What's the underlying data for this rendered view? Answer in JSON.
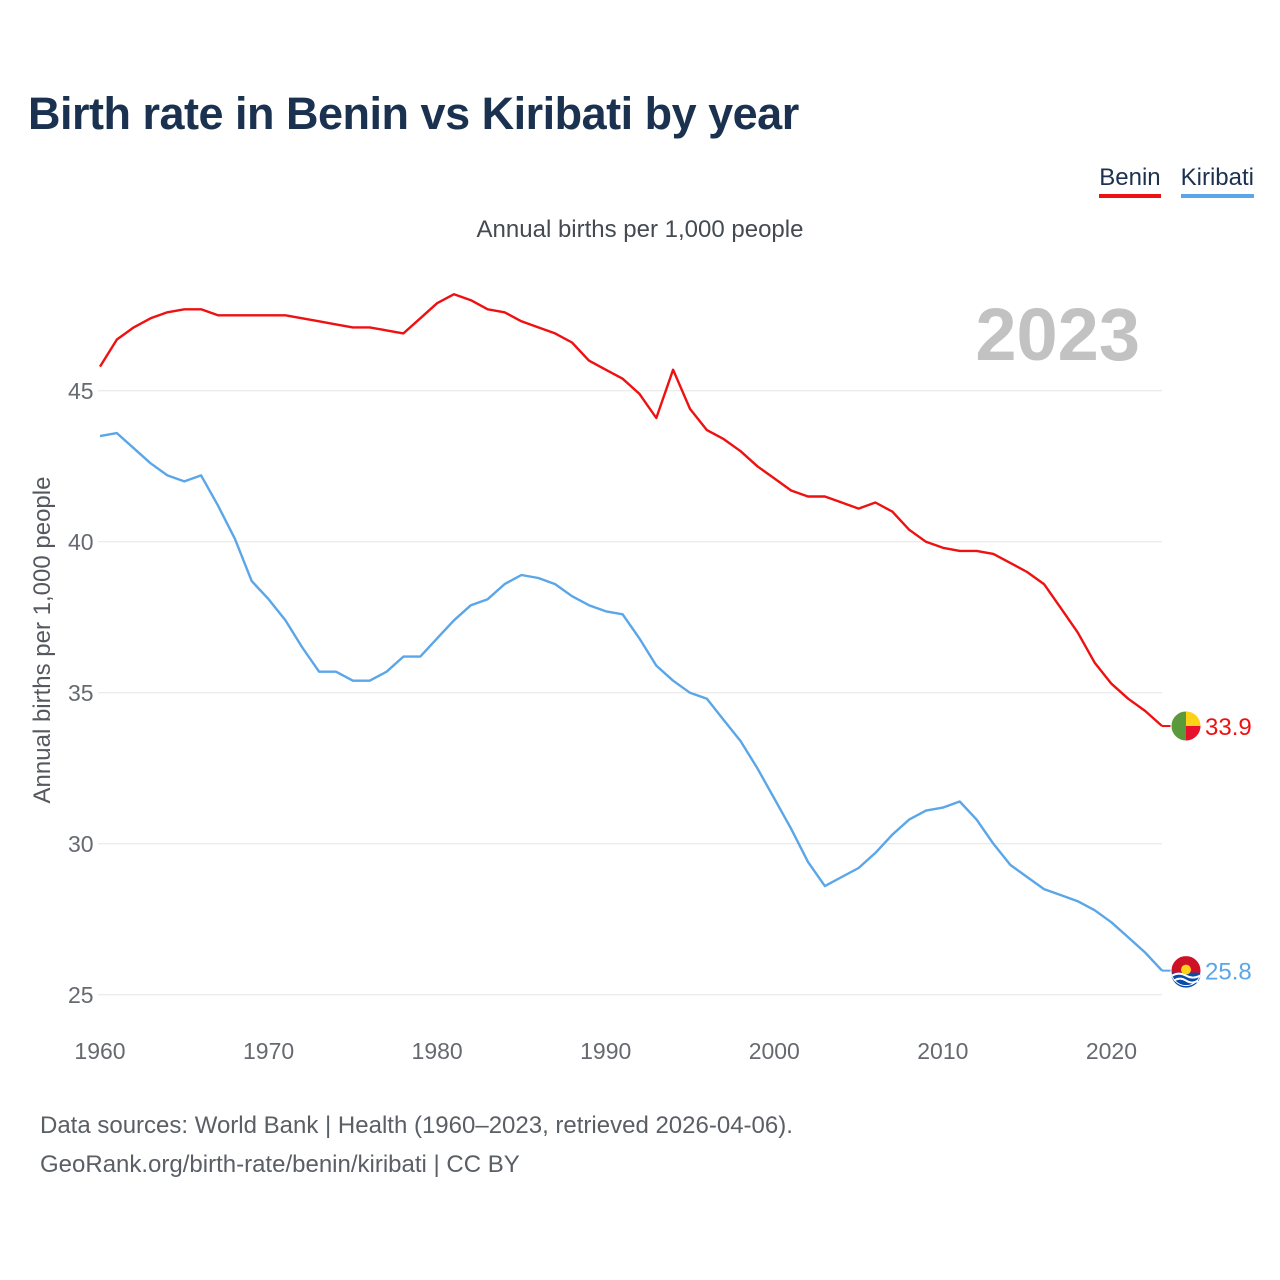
{
  "title": "Birth rate in Benin vs Kiribati by year",
  "subtitle": "Annual births per 1,000 people",
  "legend": [
    {
      "name": "Benin",
      "color": "#ee1111"
    },
    {
      "name": "Kiribati",
      "color": "#5aa6e8"
    }
  ],
  "source": {
    "line1": "Data sources: World Bank | Health (1960–2023, retrieved 2026-04-06).",
    "line2": "GeoRank.org/birth-rate/benin/kiribati | CC BY"
  },
  "chart_data": {
    "type": "line",
    "title": "Birth rate in Benin vs Kiribati by year",
    "ylabel": "Annual births per 1,000 people",
    "xlabel": "",
    "year_label": "2023",
    "xlim": [
      1960,
      2023
    ],
    "ylim": [
      24,
      49
    ],
    "x_ticks": [
      1960,
      1970,
      1980,
      1990,
      2000,
      2010,
      2020
    ],
    "y_ticks": [
      25,
      30,
      35,
      40,
      45
    ],
    "grid": true,
    "legend_position": "top-right",
    "x": [
      1960,
      1961,
      1962,
      1963,
      1964,
      1965,
      1966,
      1967,
      1968,
      1969,
      1970,
      1971,
      1972,
      1973,
      1974,
      1975,
      1976,
      1977,
      1978,
      1979,
      1980,
      1981,
      1982,
      1983,
      1984,
      1985,
      1986,
      1987,
      1988,
      1989,
      1990,
      1991,
      1992,
      1993,
      1994,
      1995,
      1996,
      1997,
      1998,
      1999,
      2000,
      2001,
      2002,
      2003,
      2004,
      2005,
      2006,
      2007,
      2008,
      2009,
      2010,
      2011,
      2012,
      2013,
      2014,
      2015,
      2016,
      2017,
      2018,
      2019,
      2020,
      2021,
      2022,
      2023
    ],
    "series": [
      {
        "name": "Benin",
        "color": "#ee1111",
        "end_label": "33.9",
        "values": [
          45.8,
          46.7,
          47.1,
          47.4,
          47.6,
          47.7,
          47.7,
          47.5,
          47.5,
          47.5,
          47.5,
          47.5,
          47.4,
          47.3,
          47.2,
          47.1,
          47.1,
          47.0,
          46.9,
          47.4,
          47.9,
          48.2,
          48.0,
          47.7,
          47.6,
          47.3,
          47.1,
          46.9,
          46.6,
          46.0,
          45.7,
          45.4,
          44.9,
          44.1,
          45.7,
          44.4,
          43.7,
          43.4,
          43.0,
          42.5,
          42.1,
          41.7,
          41.5,
          41.5,
          41.3,
          41.1,
          41.3,
          41.0,
          40.4,
          40.0,
          39.8,
          39.7,
          39.7,
          39.6,
          39.3,
          39.0,
          38.6,
          37.8,
          37.0,
          36.0,
          35.3,
          34.8,
          34.4,
          33.9
        ]
      },
      {
        "name": "Kiribati",
        "color": "#5aa6e8",
        "end_label": "25.8",
        "values": [
          43.5,
          43.6,
          43.1,
          42.6,
          42.2,
          42.0,
          42.2,
          41.2,
          40.1,
          38.7,
          38.1,
          37.4,
          36.5,
          35.7,
          35.7,
          35.4,
          35.4,
          35.7,
          36.2,
          36.2,
          36.8,
          37.4,
          37.9,
          38.1,
          38.6,
          38.9,
          38.8,
          38.6,
          38.2,
          37.9,
          37.7,
          37.6,
          36.8,
          35.9,
          35.4,
          35.0,
          34.8,
          34.1,
          33.4,
          32.5,
          31.5,
          30.5,
          29.4,
          28.6,
          28.9,
          29.2,
          29.7,
          30.3,
          30.8,
          31.1,
          31.2,
          31.4,
          30.8,
          30.0,
          29.3,
          28.9,
          28.5,
          28.3,
          28.1,
          27.8,
          27.4,
          26.9,
          26.4,
          25.8
        ]
      }
    ]
  }
}
